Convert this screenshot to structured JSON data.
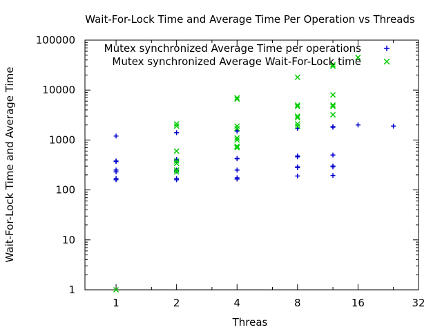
{
  "chart_data": {
    "type": "scatter",
    "title": "Wait-For-Lock Time and Average Time Per Operation vs Threads",
    "xlabel": "Threas",
    "ylabel": "Wait-For-Lock Time and Average Time",
    "x_scale": "log2",
    "y_scale": "log10",
    "xlim": [
      0.7,
      32
    ],
    "ylim": [
      1,
      100000
    ],
    "x_ticks": [
      1,
      2,
      4,
      8,
      16,
      32
    ],
    "x_tick_labels": [
      "1",
      "2",
      "4",
      "8",
      "16",
      "32"
    ],
    "y_ticks": [
      1,
      10,
      100,
      1000,
      10000,
      100000
    ],
    "y_tick_labels": [
      "1",
      "10",
      "100",
      "1000",
      "10000",
      "100000"
    ],
    "grid": false,
    "legend_position": "top-right",
    "series": [
      {
        "name": "Mutex synchronized Average Time per operations",
        "marker": "plus",
        "color": "#0000cc",
        "points": [
          {
            "x": 1,
            "y": 1200
          },
          {
            "x": 1,
            "y": 380
          },
          {
            "x": 1,
            "y": 370
          },
          {
            "x": 1,
            "y": 250
          },
          {
            "x": 1,
            "y": 230
          },
          {
            "x": 1,
            "y": 170
          },
          {
            "x": 1,
            "y": 160
          },
          {
            "x": 2,
            "y": 1400
          },
          {
            "x": 2,
            "y": 410
          },
          {
            "x": 2,
            "y": 390
          },
          {
            "x": 2,
            "y": 250
          },
          {
            "x": 2,
            "y": 240
          },
          {
            "x": 2,
            "y": 170
          },
          {
            "x": 2,
            "y": 160
          },
          {
            "x": 4,
            "y": 1550
          },
          {
            "x": 4,
            "y": 1500
          },
          {
            "x": 4,
            "y": 430
          },
          {
            "x": 4,
            "y": 420
          },
          {
            "x": 4,
            "y": 250
          },
          {
            "x": 4,
            "y": 175
          },
          {
            "x": 4,
            "y": 165
          },
          {
            "x": 8,
            "y": 1700
          },
          {
            "x": 8,
            "y": 480
          },
          {
            "x": 8,
            "y": 460
          },
          {
            "x": 8,
            "y": 290
          },
          {
            "x": 8,
            "y": 280
          },
          {
            "x": 8,
            "y": 190
          },
          {
            "x": 12,
            "y": 1850
          },
          {
            "x": 12,
            "y": 1800
          },
          {
            "x": 12,
            "y": 500
          },
          {
            "x": 12,
            "y": 300
          },
          {
            "x": 12,
            "y": 290
          },
          {
            "x": 12,
            "y": 195
          },
          {
            "x": 16,
            "y": 2000
          },
          {
            "x": 24,
            "y": 1900
          }
        ]
      },
      {
        "name": "Mutex synchronized Average Wait-For-Lock time",
        "marker": "cross",
        "color": "#00cc00",
        "points": [
          {
            "x": 1,
            "y": 1
          },
          {
            "x": 2,
            "y": 2100
          },
          {
            "x": 2,
            "y": 1900
          },
          {
            "x": 2,
            "y": 600
          },
          {
            "x": 2,
            "y": 380
          },
          {
            "x": 2,
            "y": 340
          },
          {
            "x": 2,
            "y": 250
          },
          {
            "x": 2,
            "y": 230
          },
          {
            "x": 4,
            "y": 7000
          },
          {
            "x": 4,
            "y": 6600
          },
          {
            "x": 4,
            "y": 1900
          },
          {
            "x": 4,
            "y": 1700
          },
          {
            "x": 4,
            "y": 1100
          },
          {
            "x": 4,
            "y": 1000
          },
          {
            "x": 4,
            "y": 750
          },
          {
            "x": 4,
            "y": 700
          },
          {
            "x": 8,
            "y": 18000
          },
          {
            "x": 8,
            "y": 5000
          },
          {
            "x": 8,
            "y": 4700
          },
          {
            "x": 8,
            "y": 3000
          },
          {
            "x": 8,
            "y": 2800
          },
          {
            "x": 8,
            "y": 2100
          },
          {
            "x": 8,
            "y": 1900
          },
          {
            "x": 12,
            "y": 32000
          },
          {
            "x": 12,
            "y": 30000
          },
          {
            "x": 12,
            "y": 8000
          },
          {
            "x": 12,
            "y": 5000
          },
          {
            "x": 12,
            "y": 4700
          },
          {
            "x": 12,
            "y": 3200
          },
          {
            "x": 16,
            "y": 45000
          }
        ]
      }
    ]
  }
}
